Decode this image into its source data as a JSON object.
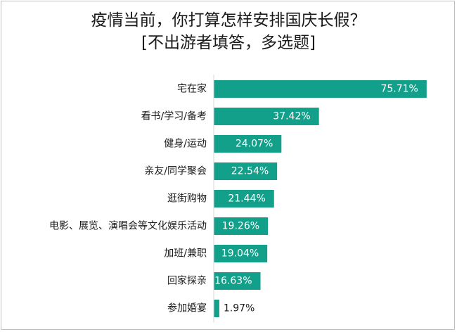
{
  "chart_data": {
    "type": "bar",
    "orientation": "horizontal",
    "title": "疫情当前，你打算怎样安排国庆长假？",
    "subtitle": "[不出游者填答，多选题]",
    "categories": [
      "宅在家",
      "看书/学习/备考",
      "健身/运动",
      "亲友/同学聚会",
      "逛街购物",
      "电影、展览、演唱会等文化娱乐活动",
      "加班/兼职",
      "回家探亲",
      "参加婚宴"
    ],
    "values": [
      75.71,
      37.42,
      24.07,
      22.54,
      21.44,
      19.26,
      19.04,
      16.63,
      1.97
    ],
    "value_labels": [
      "75.71%",
      "37.42%",
      "24.07%",
      "22.54%",
      "21.44%",
      "19.26%",
      "19.04%",
      "16.63%",
      "1.97%"
    ],
    "xlim": [
      0,
      80
    ],
    "bar_color": "#12a08a",
    "grid": false,
    "legend": "none"
  }
}
